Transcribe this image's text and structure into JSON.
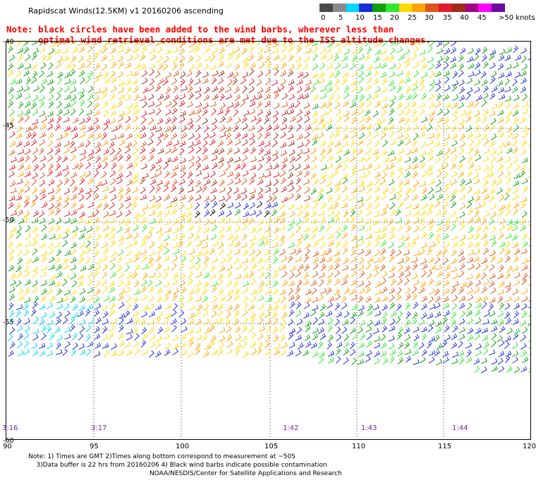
{
  "title": "Rapidscat Winds(12.5KM) v1 20160206 ascending",
  "note_line1": "Note: black circles have been added to the wind barbs, wherever less than",
  "note_line2": "      optimal wind retrieval conditions are met due to the ISS altitude changes.",
  "colorbar": {
    "colors": [
      "#4a4a4a",
      "#8a8a8a",
      "#00d8ff",
      "#1a2ad8",
      "#0aa00a",
      "#2ee82e",
      "#ffd800",
      "#ffa300",
      "#e0561a",
      "#e01a2a",
      "#a02a1a",
      "#a0008a",
      "#ff00ff",
      "#6a0aa0"
    ],
    "labels": [
      "0",
      "5",
      "10",
      "15",
      "20",
      "25",
      "30",
      "35",
      "40",
      "45",
      ">50 knots"
    ]
  },
  "lat_labels": [
    "-40",
    "-45",
    "-50",
    "-55",
    "-60"
  ],
  "lon_labels": [
    "90",
    "95",
    "100",
    "105",
    "110",
    "115",
    "120"
  ],
  "time_labels": [
    "3:16",
    "3:17",
    "1:42",
    "1:43",
    "1:44"
  ],
  "footnote_line1": "Note: 1) Times are GMT 2)Times along bottom correspond to measurement at ~50S",
  "footnote_line2": "    3)Data buffer is 22 hrs from 20160206 4) Black wind barbs indicate possible contamination",
  "credit": "NOAA/NESDIS/Center for Satellite Applications and Research"
}
